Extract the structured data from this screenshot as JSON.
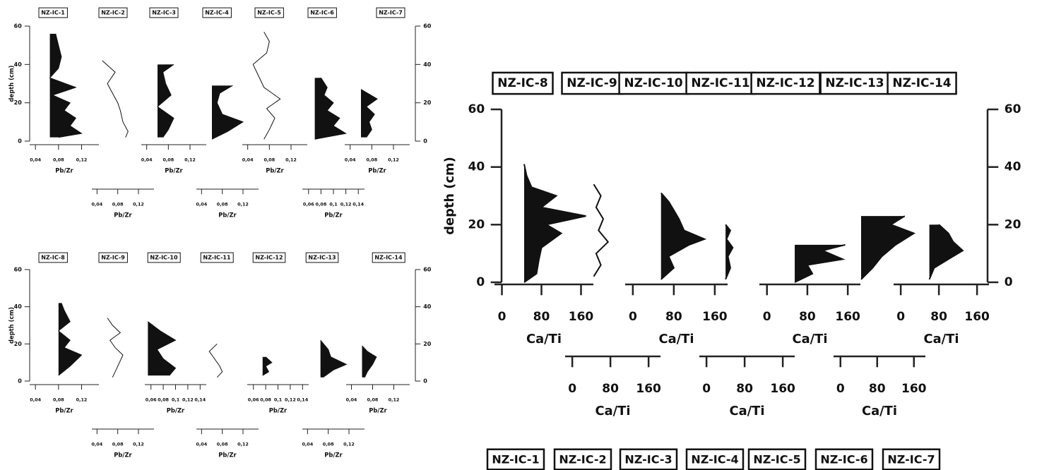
{
  "chart_data": [
    {
      "type": "line",
      "ylabel": "depth (cm)",
      "ylim": [
        0,
        60
      ],
      "yticks": [
        0,
        20,
        40,
        60
      ],
      "cores": [
        {
          "name": "NZ-IC-1",
          "filled": true,
          "xlabel": "Pb/Zr",
          "xlim": [
            0.03,
            0.15
          ],
          "xticks": [
            {
              "value": 0.04,
              "label": "0,04"
            },
            {
              "value": 0.08,
              "label": "0,08"
            },
            {
              "value": 0.12,
              "label": "0,12"
            }
          ],
          "depth": [
            2,
            4,
            8,
            12,
            16,
            20,
            24,
            28,
            33,
            38,
            44,
            50,
            56
          ],
          "values": [
            0.08,
            0.12,
            0.1,
            0.11,
            0.09,
            0.1,
            0.07,
            0.11,
            0.065,
            0.08,
            0.085,
            0.08,
            0.075
          ]
        },
        {
          "name": "NZ-IC-2",
          "filled": false,
          "xlabel": "Pb/Zr",
          "xlim": [
            0.03,
            0.15
          ],
          "xticks": [
            {
              "value": 0.04,
              "label": "0,04"
            },
            {
              "value": 0.08,
              "label": "0,08"
            },
            {
              "value": 0.12,
              "label": "0,12"
            }
          ],
          "depth": [
            2,
            5,
            10,
            16,
            20,
            25,
            30,
            36,
            42
          ],
          "values": [
            0.095,
            0.1,
            0.09,
            0.085,
            0.08,
            0.07,
            0.06,
            0.075,
            0.05
          ]
        },
        {
          "name": "NZ-IC-3",
          "filled": true,
          "xlabel": "Pb/Zr",
          "xlim": [
            0.03,
            0.15
          ],
          "xticks": [
            {
              "value": 0.04,
              "label": "0,04"
            },
            {
              "value": 0.08,
              "label": "0,08"
            },
            {
              "value": 0.12,
              "label": "0,12"
            }
          ],
          "depth": [
            2,
            6,
            12,
            18,
            24,
            30,
            36,
            40
          ],
          "values": [
            0.07,
            0.08,
            0.09,
            0.06,
            0.085,
            0.075,
            0.07,
            0.09
          ]
        },
        {
          "name": "NZ-IC-4",
          "filled": true,
          "xlabel": "Pb/Zr",
          "xlim": [
            0.03,
            0.15
          ],
          "xticks": [
            {
              "value": 0.04,
              "label": "0,04"
            },
            {
              "value": 0.08,
              "label": "0,08"
            },
            {
              "value": 0.12,
              "label": "0,12"
            }
          ],
          "depth": [
            1,
            5,
            10,
            14,
            20,
            25,
            29
          ],
          "values": [
            0.06,
            0.09,
            0.12,
            0.08,
            0.07,
            0.075,
            0.1
          ]
        },
        {
          "name": "NZ-IC-5",
          "filled": false,
          "xlabel": "Pb/Zr",
          "xlim": [
            0.03,
            0.15
          ],
          "xticks": [
            {
              "value": 0.04,
              "label": "0,04"
            },
            {
              "value": 0.08,
              "label": "0,08"
            },
            {
              "value": 0.12,
              "label": "0,12"
            }
          ],
          "depth": [
            1,
            6,
            12,
            17,
            22,
            28,
            34,
            40,
            46,
            52,
            57
          ],
          "values": [
            0.07,
            0.08,
            0.09,
            0.075,
            0.1,
            0.07,
            0.06,
            0.05,
            0.075,
            0.08,
            0.07
          ]
        },
        {
          "name": "NZ-IC-6",
          "filled": true,
          "xlabel": "Pb/Zr",
          "xlim": [
            0.05,
            0.15
          ],
          "xticks": [
            {
              "value": 0.06,
              "label": "0,06"
            },
            {
              "value": 0.08,
              "label": "0,08"
            },
            {
              "value": 0.1,
              "label": "0,1"
            },
            {
              "value": 0.12,
              "label": "0,12"
            },
            {
              "value": 0.14,
              "label": "0,14"
            }
          ],
          "depth": [
            1,
            4,
            8,
            12,
            16,
            20,
            24,
            28,
            33
          ],
          "values": [
            0.07,
            0.12,
            0.1,
            0.11,
            0.09,
            0.1,
            0.085,
            0.09,
            0.08
          ]
        },
        {
          "name": "NZ-IC-7",
          "filled": true,
          "xlabel": "Pb/Zr",
          "xlim": [
            0.03,
            0.15
          ],
          "xticks": [
            {
              "value": 0.04,
              "label": "0,04"
            },
            {
              "value": 0.08,
              "label": "0,08"
            },
            {
              "value": 0.12,
              "label": "0,12"
            }
          ],
          "depth": [
            2,
            6,
            10,
            14,
            18,
            22,
            27
          ],
          "values": [
            0.07,
            0.08,
            0.075,
            0.085,
            0.07,
            0.09,
            0.06
          ]
        }
      ]
    },
    {
      "type": "line",
      "ylabel": "depth (cm)",
      "ylim": [
        0,
        60
      ],
      "yticks": [
        0,
        20,
        40,
        60
      ],
      "cores": [
        {
          "name": "NZ-IC-8",
          "filled": true,
          "xlabel": "Pb/Zr",
          "xlim": [
            0.03,
            0.15
          ],
          "xticks": [
            {
              "value": 0.04,
              "label": "0,04"
            },
            {
              "value": 0.08,
              "label": "0,08"
            },
            {
              "value": 0.12,
              "label": "0,12"
            }
          ],
          "depth": [
            3,
            8,
            14,
            18,
            22,
            27,
            32,
            38,
            42
          ],
          "values": [
            0.08,
            0.1,
            0.12,
            0.09,
            0.1,
            0.08,
            0.1,
            0.09,
            0.085
          ]
        },
        {
          "name": "NZ-IC-9",
          "filled": false,
          "xlabel": "Pb/Zr",
          "xlim": [
            0.03,
            0.15
          ],
          "xticks": [
            {
              "value": 0.04,
              "label": "0,04"
            },
            {
              "value": 0.08,
              "label": "0,08"
            },
            {
              "value": 0.12,
              "label": "0,12"
            }
          ],
          "depth": [
            2,
            8,
            14,
            18,
            22,
            26,
            30,
            34
          ],
          "values": [
            0.07,
            0.08,
            0.09,
            0.075,
            0.065,
            0.085,
            0.07,
            0.06
          ]
        },
        {
          "name": "NZ-IC-10",
          "filled": true,
          "xlabel": "Pb/Zr",
          "xlim": [
            0.05,
            0.15
          ],
          "xticks": [
            {
              "value": 0.06,
              "label": "0,06"
            },
            {
              "value": 0.08,
              "label": "0,08"
            },
            {
              "value": 0.1,
              "label": "0,1"
            },
            {
              "value": 0.12,
              "label": "0,12"
            },
            {
              "value": 0.14,
              "label": "0,14"
            }
          ],
          "depth": [
            3,
            7,
            12,
            17,
            22,
            27,
            32
          ],
          "values": [
            0.09,
            0.1,
            0.08,
            0.07,
            0.1,
            0.075,
            0.055
          ]
        },
        {
          "name": "NZ-IC-11",
          "filled": false,
          "xlabel": "Pb/Zr",
          "xlim": [
            0.03,
            0.15
          ],
          "xticks": [
            {
              "value": 0.04,
              "label": "0,04"
            },
            {
              "value": 0.08,
              "label": "0,08"
            },
            {
              "value": 0.12,
              "label": "0,12"
            }
          ],
          "depth": [
            2,
            5,
            8,
            12,
            16,
            20
          ],
          "values": [
            0.07,
            0.08,
            0.075,
            0.065,
            0.055,
            0.07
          ]
        },
        {
          "name": "NZ-IC-12",
          "filled": true,
          "xlabel": "Pb/Zr",
          "xlim": [
            0.05,
            0.15
          ],
          "xticks": [
            {
              "value": 0.06,
              "label": "0,06"
            },
            {
              "value": 0.08,
              "label": "0,08"
            },
            {
              "value": 0.1,
              "label": "0,1"
            },
            {
              "value": 0.12,
              "label": "0,12"
            },
            {
              "value": 0.14,
              "label": "0,14"
            }
          ],
          "depth": [
            3,
            5,
            8,
            10,
            13
          ],
          "values": [
            0.075,
            0.085,
            0.08,
            0.09,
            0.08
          ]
        },
        {
          "name": "NZ-IC-13",
          "filled": true,
          "xlabel": "Pb/Zr",
          "xlim": [
            0.03,
            0.15
          ],
          "xticks": [
            {
              "value": 0.04,
              "label": "0,04"
            },
            {
              "value": 0.08,
              "label": "0,08"
            },
            {
              "value": 0.12,
              "label": "0,12"
            }
          ],
          "depth": [
            2,
            6,
            9,
            13,
            17,
            22
          ],
          "values": [
            0.07,
            0.09,
            0.115,
            0.085,
            0.08,
            0.065
          ]
        },
        {
          "name": "NZ-IC-14",
          "filled": true,
          "xlabel": "Pb/Zr",
          "xlim": [
            0.03,
            0.15
          ],
          "xticks": [
            {
              "value": 0.04,
              "label": "0,04"
            },
            {
              "value": 0.08,
              "label": "0,08"
            },
            {
              "value": 0.12,
              "label": "0,12"
            }
          ],
          "depth": [
            2,
            5,
            9,
            13,
            16,
            19
          ],
          "values": [
            0.065,
            0.07,
            0.08,
            0.087,
            0.07,
            0.06
          ]
        }
      ]
    },
    {
      "type": "line",
      "ylabel": "depth (cm)",
      "ylim": [
        0,
        60
      ],
      "yticks": [
        0,
        20,
        40,
        60
      ],
      "cores": [
        {
          "name": "NZ-IC-8",
          "filled": true,
          "xlabel": "Ca/Ti",
          "xlim": [
            -15,
            185
          ],
          "xticks": [
            0,
            80,
            160
          ],
          "depth": [
            0,
            3,
            8,
            12,
            17,
            20,
            23,
            26,
            30,
            33,
            37,
            41
          ],
          "values": [
            45,
            70,
            75,
            80,
            120,
            90,
            170,
            80,
            110,
            60,
            50,
            45
          ]
        },
        {
          "name": "NZ-IC-9",
          "filled": false,
          "xlabel": "Ca/Ti",
          "xlim": [
            -15,
            185
          ],
          "xticks": [
            0,
            80,
            160
          ],
          "depth": [
            2,
            6,
            10,
            14,
            18,
            22,
            26,
            30,
            34
          ],
          "values": [
            45,
            60,
            50,
            75,
            55,
            65,
            50,
            60,
            45
          ]
        },
        {
          "name": "NZ-IC-10",
          "filled": true,
          "xlabel": "Ca/Ti",
          "xlim": [
            -15,
            185
          ],
          "xticks": [
            0,
            80,
            160
          ],
          "depth": [
            1,
            5,
            9,
            13,
            15,
            18,
            22,
            25,
            28,
            31
          ],
          "values": [
            55,
            80,
            70,
            110,
            140,
            100,
            90,
            80,
            70,
            55
          ]
        },
        {
          "name": "NZ-IC-11",
          "filled": true,
          "xlabel": "Ca/Ti",
          "xlim": [
            -15,
            185
          ],
          "xticks": [
            0,
            80,
            160
          ],
          "depth": [
            1,
            5,
            9,
            12,
            15,
            18,
            20
          ],
          "values": [
            40,
            50,
            45,
            55,
            42,
            50,
            40
          ]
        },
        {
          "name": "NZ-IC-12",
          "filled": true,
          "xlabel": "Ca/Ti",
          "xlim": [
            -15,
            185
          ],
          "xticks": [
            0,
            80,
            160
          ],
          "depth": [
            0,
            3,
            6,
            8,
            11,
            13
          ],
          "values": [
            55,
            90,
            80,
            150,
            110,
            155
          ]
        },
        {
          "name": "NZ-IC-13",
          "filled": true,
          "xlabel": "Ca/Ti",
          "xlim": [
            -15,
            185
          ],
          "xticks": [
            0,
            80,
            160
          ],
          "depth": [
            1,
            5,
            9,
            13,
            17,
            20,
            23
          ],
          "values": [
            45,
            70,
            90,
            120,
            160,
            110,
            140
          ]
        },
        {
          "name": "NZ-IC-14",
          "filled": true,
          "xlabel": "Ca/Ti",
          "xlim": [
            -15,
            185
          ],
          "xticks": [
            0,
            80,
            160
          ],
          "depth": [
            1,
            5,
            8,
            11,
            14,
            17,
            20
          ],
          "values": [
            60,
            70,
            100,
            130,
            110,
            100,
            80
          ]
        }
      ]
    },
    {
      "type": "line",
      "cores": [
        {
          "name": "NZ-IC-1"
        },
        {
          "name": "NZ-IC-2"
        },
        {
          "name": "NZ-IC-3"
        },
        {
          "name": "NZ-IC-4"
        },
        {
          "name": "NZ-IC-5"
        },
        {
          "name": "NZ-IC-6"
        },
        {
          "name": "NZ-IC-7"
        }
      ]
    }
  ]
}
